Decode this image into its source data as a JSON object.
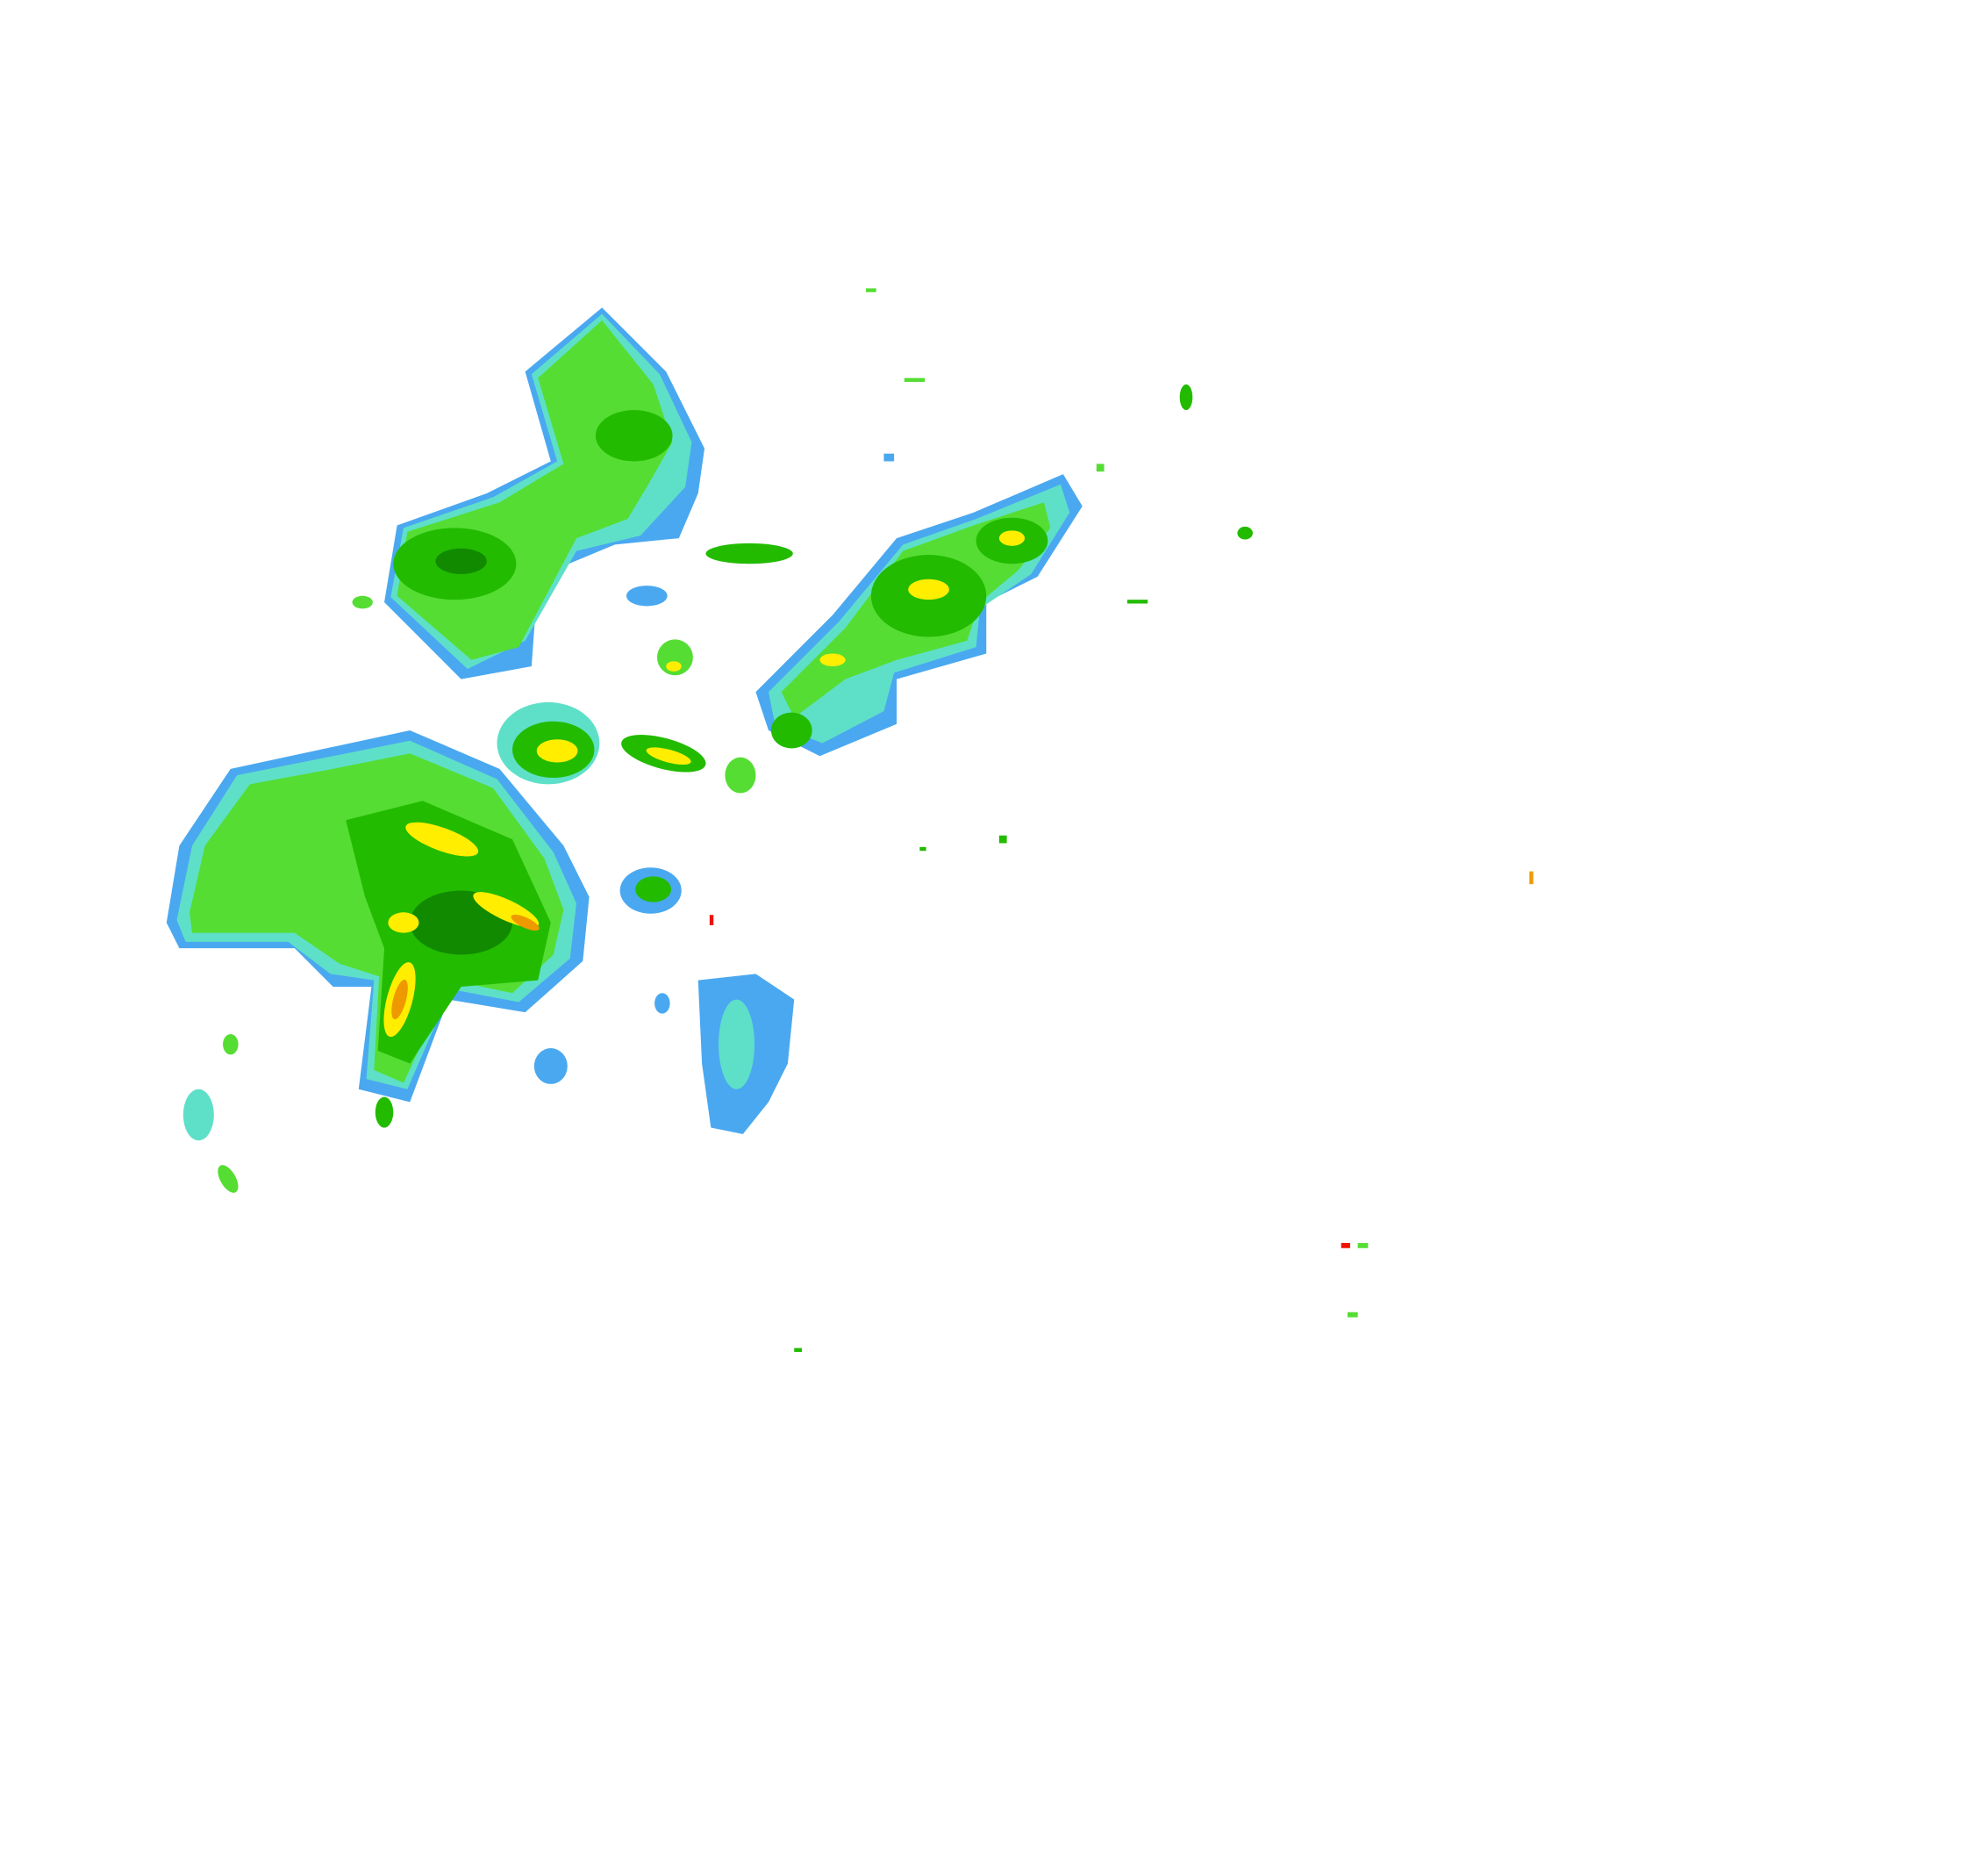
{
  "radar": {
    "colors": {
      "background": "#ffffff",
      "light_blue": "#4aa8f0",
      "cyan": "#5ee0c8",
      "light_green": "#55dd33",
      "green": "#22bb00",
      "dark_green": "#118a00",
      "yellow": "#ffee00",
      "orange": "#ee9900",
      "red": "#ee1100"
    }
  }
}
